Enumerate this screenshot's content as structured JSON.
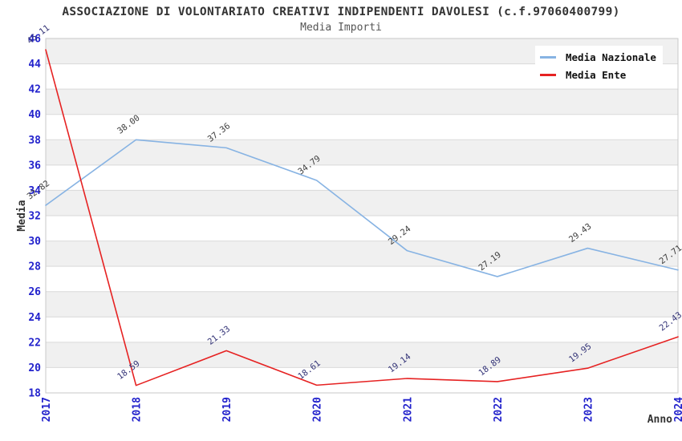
{
  "title": "ASSOCIAZIONE DI VOLONTARIATO CREATIVI INDIPENDENTI DAVOLESI (c.f.97060400799)",
  "subtitle": "Media Importi",
  "axes": {
    "x_title": "Anno",
    "y_title": "Media",
    "x_tick_labels": [
      "2017",
      "2018",
      "2019",
      "2020",
      "2021",
      "2022",
      "2023",
      "2024"
    ],
    "y_tick_min": 18,
    "y_tick_max": 46,
    "y_tick_step": 2,
    "tick_label_color": "#2222cc",
    "axis_title_color": "#333333"
  },
  "chart_data": {
    "type": "line",
    "title": "ASSOCIAZIONE DI VOLONTARIATO CREATIVI INDIPENDENTI DAVOLESI (c.f.97060400799)",
    "subtitle": "Media Importi",
    "xlabel": "Anno",
    "ylabel": "Media",
    "x": [
      2017,
      2018,
      2019,
      2020,
      2021,
      2022,
      2023,
      2024
    ],
    "series": [
      {
        "name": "Media Nazionale",
        "color": "#87b3e3",
        "label_color": "#3d3d3d",
        "values": [
          32.82,
          38.0,
          37.36,
          34.79,
          29.24,
          27.19,
          29.43,
          27.71
        ]
      },
      {
        "name": "Media Ente",
        "color": "#e62222",
        "label_color": "#333377",
        "values": [
          45.11,
          18.59,
          21.33,
          18.61,
          19.14,
          18.89,
          19.95,
          22.43
        ]
      }
    ],
    "ylim": [
      18,
      46
    ],
    "grid": true,
    "legend_position": "top-right",
    "point_labels_visible": true
  },
  "style": {
    "background": "#ffffff",
    "band_color": "#f0f0f0",
    "grid_color": "#d9d9d9",
    "border_color": "#c8c8c8",
    "title_color": "#333333",
    "subtitle_color": "#555555"
  }
}
